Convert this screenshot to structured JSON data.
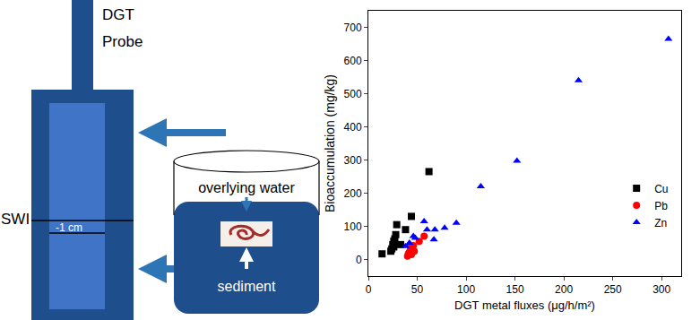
{
  "diagram": {
    "probe_label": [
      "DGT",
      "Probe"
    ],
    "interface_label": "SWI",
    "depth_label": "-1 cm",
    "water_label": "overlying water",
    "sediment_label": "sediment"
  },
  "chart_data": {
    "type": "scatter",
    "x_label": "DGT metal fluxes (μg/h/m²)",
    "y_label": "Bioaccumulation (mg/kg)",
    "xlim": [
      0,
      320
    ],
    "xticks": [
      0,
      50,
      100,
      150,
      200,
      250,
      300
    ],
    "ylim": [
      -50,
      750
    ],
    "yticks": [
      0,
      100,
      200,
      300,
      400,
      500,
      600,
      700
    ],
    "grid": false,
    "legend": "right",
    "series": [
      {
        "name": "Cu",
        "color": "#000000",
        "marker": "square",
        "x": [
          14,
          23,
          24,
          25,
          26,
          26,
          27,
          28,
          29,
          33,
          38,
          44,
          62
        ],
        "values": [
          17,
          25,
          32,
          45,
          38,
          55,
          62,
          75,
          105,
          45,
          90,
          130,
          265
        ]
      },
      {
        "name": "Pb",
        "color": "#ff0000",
        "marker": "circle",
        "x": [
          40,
          41,
          42,
          43,
          43,
          44,
          44,
          46,
          47,
          52,
          57
        ],
        "values": [
          10,
          18,
          22,
          28,
          40,
          35,
          15,
          42,
          25,
          55,
          70
        ]
      },
      {
        "name": "Zn",
        "color": "#0000ff",
        "marker": "triangle-up",
        "x": [
          38,
          42,
          46,
          48,
          57,
          60,
          67,
          68,
          78,
          90,
          115,
          152,
          215,
          307
        ],
        "values": [
          40,
          50,
          70,
          65,
          115,
          90,
          60,
          90,
          95,
          110,
          220,
          297,
          540,
          665
        ]
      }
    ]
  }
}
